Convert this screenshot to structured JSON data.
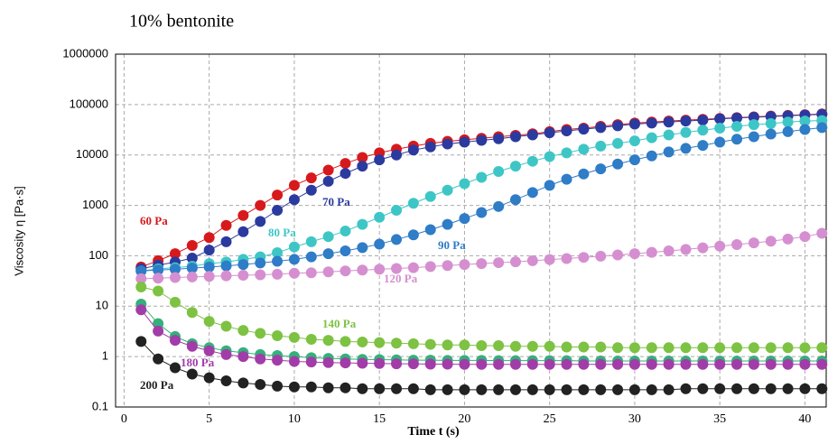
{
  "chart_data": {
    "type": "scatter-line",
    "title": "10% bentonite",
    "x_label": "Time t (s)",
    "y_label": "Viscosity η [Pa·s]",
    "x": [
      1,
      2,
      3,
      4,
      5,
      6,
      7,
      8,
      9,
      10,
      11,
      12,
      13,
      14,
      15,
      16,
      17,
      18,
      19,
      20,
      21,
      22,
      23,
      24,
      25,
      26,
      27,
      28,
      29,
      30,
      31,
      32,
      33,
      34,
      35,
      36,
      37,
      38,
      39,
      40,
      41
    ],
    "xlim": [
      -0.5,
      41.25
    ],
    "xticks": [
      0,
      5,
      10,
      15,
      20,
      25,
      30,
      35,
      40
    ],
    "ylim": [
      0.1,
      1000000
    ],
    "yticks": [
      0.1,
      1,
      10,
      100,
      1000,
      10000,
      100000,
      1000000
    ],
    "y_log": true,
    "grid": true,
    "series": [
      {
        "name": "60 Pa",
        "color": "#d7191c",
        "values": [
          60,
          80,
          110,
          160,
          230,
          400,
          630,
          1000,
          1600,
          2500,
          3500,
          5000,
          6800,
          8900,
          11000,
          13000,
          15000,
          17000,
          18600,
          20000,
          21400,
          23000,
          24500,
          26300,
          29000,
          32000,
          34000,
          37000,
          40000,
          43000,
          45000,
          47000,
          49000,
          51000,
          53000,
          55000,
          57000,
          59000,
          61000,
          63000,
          65000
        ]
      },
      {
        "name": "70 Pa",
        "color": "#2b3a9e",
        "values": [
          55,
          65,
          75,
          90,
          130,
          190,
          300,
          480,
          800,
          1300,
          2000,
          3000,
          4300,
          6000,
          8000,
          10000,
          12500,
          14500,
          16500,
          18000,
          19500,
          21000,
          23000,
          25000,
          27500,
          30000,
          32500,
          35000,
          38000,
          41000,
          43000,
          45000,
          47000,
          49000,
          52000,
          54000,
          56000,
          58000,
          60000,
          62000,
          64000
        ]
      },
      {
        "name": "80 Pa",
        "color": "#3ec6c6",
        "values": [
          50,
          55,
          58,
          62,
          70,
          75,
          85,
          95,
          115,
          150,
          190,
          240,
          310,
          420,
          580,
          800,
          1100,
          1500,
          2000,
          2700,
          3600,
          4700,
          6000,
          7500,
          9300,
          11000,
          13000,
          15000,
          17000,
          19000,
          22000,
          25000,
          28000,
          31000,
          34000,
          37000,
          40000,
          42000,
          45000,
          47000,
          48000
        ]
      },
      {
        "name": "90 Pa",
        "color": "#2f7cc7",
        "values": [
          50,
          52,
          54,
          57,
          60,
          63,
          67,
          72,
          78,
          85,
          95,
          110,
          125,
          145,
          170,
          210,
          260,
          330,
          420,
          550,
          720,
          950,
          1300,
          1800,
          2500,
          3300,
          4200,
          5300,
          6600,
          8000,
          9600,
          11500,
          13500,
          15500,
          18000,
          20500,
          23000,
          26000,
          29000,
          32000,
          35000
        ]
      },
      {
        "name": "120 Pa",
        "color": "#d58fd0",
        "values": [
          35,
          36,
          37,
          38,
          39,
          40,
          41,
          42,
          43,
          45,
          46,
          48,
          50,
          52,
          54,
          56,
          58,
          61,
          64,
          67,
          70,
          73,
          76,
          80,
          84,
          88,
          93,
          98,
          104,
          110,
          117,
          125,
          134,
          144,
          155,
          167,
          180,
          195,
          215,
          240,
          280
        ]
      },
      {
        "name": "140 Pa",
        "color": "#7dc242",
        "values": [
          24,
          20,
          12,
          7.5,
          5,
          4,
          3.3,
          2.9,
          2.6,
          2.4,
          2.2,
          2.1,
          2,
          1.95,
          1.9,
          1.85,
          1.8,
          1.75,
          1.7,
          1.7,
          1.65,
          1.65,
          1.6,
          1.6,
          1.6,
          1.55,
          1.55,
          1.55,
          1.5,
          1.5,
          1.5,
          1.5,
          1.5,
          1.5,
          1.5,
          1.5,
          1.5,
          1.5,
          1.5,
          1.5,
          1.5
        ]
      },
      {
        "color": "#35b07a",
        "values": [
          11,
          4.5,
          2.5,
          1.8,
          1.5,
          1.3,
          1.2,
          1.1,
          1.05,
          1,
          0.95,
          0.92,
          0.9,
          0.88,
          0.87,
          0.86,
          0.85,
          0.85,
          0.84,
          0.84,
          0.84,
          0.83,
          0.83,
          0.83,
          0.83,
          0.83,
          0.82,
          0.82,
          0.82,
          0.82,
          0.82,
          0.82,
          0.82,
          0.82,
          0.82,
          0.82,
          0.82,
          0.82,
          0.82,
          0.82,
          0.82
        ]
      },
      {
        "name": "180 Pa",
        "color": "#a23ca8",
        "values": [
          8.5,
          3.2,
          2.1,
          1.6,
          1.3,
          1.1,
          1,
          0.9,
          0.85,
          0.8,
          0.78,
          0.76,
          0.75,
          0.74,
          0.73,
          0.72,
          0.72,
          0.71,
          0.71,
          0.7,
          0.7,
          0.7,
          0.7,
          0.7,
          0.7,
          0.7,
          0.7,
          0.7,
          0.7,
          0.7,
          0.7,
          0.7,
          0.7,
          0.7,
          0.7,
          0.7,
          0.7,
          0.7,
          0.7,
          0.7,
          0.7
        ]
      },
      {
        "name": "200 Pa",
        "color": "#222222",
        "values": [
          2,
          0.9,
          0.6,
          0.45,
          0.38,
          0.33,
          0.3,
          0.28,
          0.26,
          0.25,
          0.25,
          0.24,
          0.24,
          0.23,
          0.23,
          0.23,
          0.23,
          0.22,
          0.22,
          0.22,
          0.22,
          0.22,
          0.22,
          0.22,
          0.22,
          0.22,
          0.22,
          0.22,
          0.22,
          0.22,
          0.22,
          0.22,
          0.23,
          0.23,
          0.23,
          0.23,
          0.23,
          0.23,
          0.23,
          0.23,
          0.23
        ]
      }
    ]
  }
}
